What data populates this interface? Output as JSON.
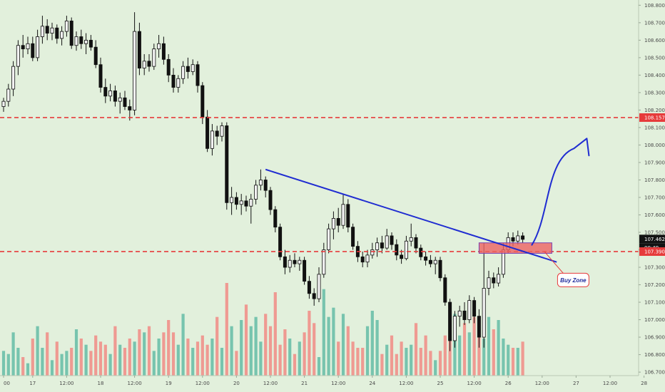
{
  "chart_data": {
    "type": "candlestick",
    "title": "",
    "price_axis": {
      "ticks": [
        "108.800",
        "108.700",
        "108.600",
        "108.500",
        "108.400",
        "108.300",
        "108.200",
        "108.100",
        "108.000",
        "107.900",
        "107.800",
        "107.700",
        "107.600",
        "107.500",
        "107.400",
        "107.300",
        "107.200",
        "107.100",
        "107.000",
        "106.900",
        "106.800",
        "106.700"
      ],
      "ylim": [
        106.68,
        108.83
      ]
    },
    "time_axis": {
      "ticks": [
        {
          "label": "00",
          "slot": 0
        },
        {
          "label": "17",
          "slot": 6
        },
        {
          "label": "12:00",
          "slot": 13
        },
        {
          "label": "18",
          "slot": 20
        },
        {
          "label": "12:00",
          "slot": 27
        },
        {
          "label": "19",
          "slot": 34
        },
        {
          "label": "12:00",
          "slot": 41
        },
        {
          "label": "20",
          "slot": 48
        },
        {
          "label": "12:00",
          "slot": 55
        },
        {
          "label": "21",
          "slot": 62
        },
        {
          "label": "12:00",
          "slot": 69
        },
        {
          "label": "24",
          "slot": 76
        },
        {
          "label": "12:00",
          "slot": 83
        },
        {
          "label": "25",
          "slot": 90
        },
        {
          "label": "12:00",
          "slot": 97
        },
        {
          "label": "26",
          "slot": 104
        },
        {
          "label": "12:00",
          "slot": 111
        },
        {
          "label": "27",
          "slot": 118
        },
        {
          "label": "12:00",
          "slot": 125
        },
        {
          "label": "28",
          "slot": 132
        }
      ]
    },
    "series": [
      {
        "type": "candle",
        "up_color": "#f2f2f2",
        "down_color": "#111111",
        "points": [
          {
            "o": 108.22,
            "h": 108.27,
            "l": 108.19,
            "c": 108.25
          },
          {
            "o": 108.25,
            "h": 108.35,
            "l": 108.22,
            "c": 108.32
          },
          {
            "o": 108.32,
            "h": 108.48,
            "l": 108.28,
            "c": 108.45
          },
          {
            "o": 108.45,
            "h": 108.6,
            "l": 108.4,
            "c": 108.57
          },
          {
            "o": 108.57,
            "h": 108.63,
            "l": 108.5,
            "c": 108.55
          },
          {
            "o": 108.55,
            "h": 108.62,
            "l": 108.52,
            "c": 108.58
          },
          {
            "o": 108.58,
            "h": 108.62,
            "l": 108.48,
            "c": 108.5
          },
          {
            "o": 108.5,
            "h": 108.66,
            "l": 108.48,
            "c": 108.62
          },
          {
            "o": 108.62,
            "h": 108.74,
            "l": 108.58,
            "c": 108.68
          },
          {
            "o": 108.68,
            "h": 108.72,
            "l": 108.6,
            "c": 108.64
          },
          {
            "o": 108.64,
            "h": 108.7,
            "l": 108.6,
            "c": 108.67
          },
          {
            "o": 108.67,
            "h": 108.69,
            "l": 108.58,
            "c": 108.61
          },
          {
            "o": 108.61,
            "h": 108.68,
            "l": 108.57,
            "c": 108.65
          },
          {
            "o": 108.65,
            "h": 108.74,
            "l": 108.62,
            "c": 108.71
          },
          {
            "o": 108.71,
            "h": 108.73,
            "l": 108.55,
            "c": 108.57
          },
          {
            "o": 108.57,
            "h": 108.65,
            "l": 108.54,
            "c": 108.62
          },
          {
            "o": 108.62,
            "h": 108.66,
            "l": 108.55,
            "c": 108.58
          },
          {
            "o": 108.58,
            "h": 108.64,
            "l": 108.52,
            "c": 108.6
          },
          {
            "o": 108.6,
            "h": 108.63,
            "l": 108.54,
            "c": 108.56
          },
          {
            "o": 108.56,
            "h": 108.6,
            "l": 108.44,
            "c": 108.46
          },
          {
            "o": 108.46,
            "h": 108.5,
            "l": 108.3,
            "c": 108.33
          },
          {
            "o": 108.33,
            "h": 108.38,
            "l": 108.24,
            "c": 108.28
          },
          {
            "o": 108.28,
            "h": 108.35,
            "l": 108.25,
            "c": 108.31
          },
          {
            "o": 108.31,
            "h": 108.34,
            "l": 108.22,
            "c": 108.25
          },
          {
            "o": 108.25,
            "h": 108.3,
            "l": 108.18,
            "c": 108.27
          },
          {
            "o": 108.27,
            "h": 108.31,
            "l": 108.2,
            "c": 108.22
          },
          {
            "o": 108.22,
            "h": 108.26,
            "l": 108.14,
            "c": 108.2
          },
          {
            "o": 108.2,
            "h": 108.76,
            "l": 108.17,
            "c": 108.65
          },
          {
            "o": 108.65,
            "h": 108.7,
            "l": 108.4,
            "c": 108.44
          },
          {
            "o": 108.44,
            "h": 108.52,
            "l": 108.4,
            "c": 108.48
          },
          {
            "o": 108.48,
            "h": 108.52,
            "l": 108.42,
            "c": 108.45
          },
          {
            "o": 108.45,
            "h": 108.58,
            "l": 108.43,
            "c": 108.55
          },
          {
            "o": 108.55,
            "h": 108.63,
            "l": 108.5,
            "c": 108.58
          },
          {
            "o": 108.58,
            "h": 108.62,
            "l": 108.46,
            "c": 108.49
          },
          {
            "o": 108.49,
            "h": 108.52,
            "l": 108.36,
            "c": 108.4
          },
          {
            "o": 108.4,
            "h": 108.44,
            "l": 108.3,
            "c": 108.33
          },
          {
            "o": 108.33,
            "h": 108.4,
            "l": 108.3,
            "c": 108.38
          },
          {
            "o": 108.38,
            "h": 108.48,
            "l": 108.35,
            "c": 108.45
          },
          {
            "o": 108.45,
            "h": 108.5,
            "l": 108.38,
            "c": 108.42
          },
          {
            "o": 108.42,
            "h": 108.49,
            "l": 108.4,
            "c": 108.46
          },
          {
            "o": 108.46,
            "h": 108.48,
            "l": 108.3,
            "c": 108.34
          },
          {
            "o": 108.34,
            "h": 108.36,
            "l": 108.12,
            "c": 108.16
          },
          {
            "o": 108.16,
            "h": 108.2,
            "l": 107.96,
            "c": 107.98
          },
          {
            "o": 107.98,
            "h": 108.12,
            "l": 107.94,
            "c": 108.08
          },
          {
            "o": 108.08,
            "h": 108.11,
            "l": 108.0,
            "c": 108.05
          },
          {
            "o": 108.05,
            "h": 108.13,
            "l": 108.02,
            "c": 108.11
          },
          {
            "o": 108.11,
            "h": 108.13,
            "l": 107.63,
            "c": 107.67
          },
          {
            "o": 107.67,
            "h": 107.76,
            "l": 107.6,
            "c": 107.7
          },
          {
            "o": 107.7,
            "h": 107.73,
            "l": 107.63,
            "c": 107.66
          },
          {
            "o": 107.66,
            "h": 107.72,
            "l": 107.6,
            "c": 107.68
          },
          {
            "o": 107.68,
            "h": 107.71,
            "l": 107.62,
            "c": 107.65
          },
          {
            "o": 107.65,
            "h": 107.72,
            "l": 107.55,
            "c": 107.69
          },
          {
            "o": 107.69,
            "h": 107.8,
            "l": 107.66,
            "c": 107.77
          },
          {
            "o": 107.77,
            "h": 107.86,
            "l": 107.74,
            "c": 107.8
          },
          {
            "o": 107.8,
            "h": 107.82,
            "l": 107.7,
            "c": 107.74
          },
          {
            "o": 107.74,
            "h": 107.76,
            "l": 107.6,
            "c": 107.63
          },
          {
            "o": 107.63,
            "h": 107.65,
            "l": 107.5,
            "c": 107.53
          },
          {
            "o": 107.53,
            "h": 107.55,
            "l": 107.34,
            "c": 107.36
          },
          {
            "o": 107.36,
            "h": 107.4,
            "l": 107.26,
            "c": 107.3
          },
          {
            "o": 107.3,
            "h": 107.37,
            "l": 107.27,
            "c": 107.34
          },
          {
            "o": 107.34,
            "h": 107.38,
            "l": 107.3,
            "c": 107.32
          },
          {
            "o": 107.32,
            "h": 107.36,
            "l": 107.28,
            "c": 107.34
          },
          {
            "o": 107.34,
            "h": 107.36,
            "l": 107.2,
            "c": 107.22
          },
          {
            "o": 107.22,
            "h": 107.25,
            "l": 107.12,
            "c": 107.15
          },
          {
            "o": 107.15,
            "h": 107.18,
            "l": 107.08,
            "c": 107.12
          },
          {
            "o": 107.12,
            "h": 107.3,
            "l": 107.1,
            "c": 107.26
          },
          {
            "o": 107.26,
            "h": 107.44,
            "l": 107.24,
            "c": 107.4
          },
          {
            "o": 107.4,
            "h": 107.55,
            "l": 107.38,
            "c": 107.52
          },
          {
            "o": 107.52,
            "h": 107.62,
            "l": 107.46,
            "c": 107.58
          },
          {
            "o": 107.58,
            "h": 107.64,
            "l": 107.5,
            "c": 107.54
          },
          {
            "o": 107.54,
            "h": 107.72,
            "l": 107.52,
            "c": 107.66
          },
          {
            "o": 107.66,
            "h": 107.69,
            "l": 107.5,
            "c": 107.53
          },
          {
            "o": 107.53,
            "h": 107.55,
            "l": 107.4,
            "c": 107.42
          },
          {
            "o": 107.42,
            "h": 107.45,
            "l": 107.33,
            "c": 107.36
          },
          {
            "o": 107.36,
            "h": 107.39,
            "l": 107.3,
            "c": 107.33
          },
          {
            "o": 107.33,
            "h": 107.4,
            "l": 107.3,
            "c": 107.37
          },
          {
            "o": 107.37,
            "h": 107.44,
            "l": 107.35,
            "c": 107.4
          },
          {
            "o": 107.4,
            "h": 107.47,
            "l": 107.36,
            "c": 107.44
          },
          {
            "o": 107.44,
            "h": 107.48,
            "l": 107.38,
            "c": 107.41
          },
          {
            "o": 107.41,
            "h": 107.52,
            "l": 107.4,
            "c": 107.48
          },
          {
            "o": 107.48,
            "h": 107.5,
            "l": 107.4,
            "c": 107.43
          },
          {
            "o": 107.43,
            "h": 107.46,
            "l": 107.34,
            "c": 107.37
          },
          {
            "o": 107.37,
            "h": 107.4,
            "l": 107.32,
            "c": 107.35
          },
          {
            "o": 107.35,
            "h": 107.48,
            "l": 107.34,
            "c": 107.45
          },
          {
            "o": 107.45,
            "h": 107.55,
            "l": 107.42,
            "c": 107.47
          },
          {
            "o": 107.47,
            "h": 107.49,
            "l": 107.38,
            "c": 107.41
          },
          {
            "o": 107.41,
            "h": 107.43,
            "l": 107.34,
            "c": 107.36
          },
          {
            "o": 107.36,
            "h": 107.39,
            "l": 107.31,
            "c": 107.34
          },
          {
            "o": 107.34,
            "h": 107.37,
            "l": 107.3,
            "c": 107.32
          },
          {
            "o": 107.32,
            "h": 107.36,
            "l": 107.26,
            "c": 107.34
          },
          {
            "o": 107.34,
            "h": 107.36,
            "l": 107.22,
            "c": 107.24
          },
          {
            "o": 107.24,
            "h": 107.26,
            "l": 107.08,
            "c": 107.1
          },
          {
            "o": 107.1,
            "h": 107.12,
            "l": 106.82,
            "c": 106.88
          },
          {
            "o": 106.88,
            "h": 107.05,
            "l": 106.84,
            "c": 107.02
          },
          {
            "o": 107.02,
            "h": 107.08,
            "l": 106.96,
            "c": 107.05
          },
          {
            "o": 107.05,
            "h": 107.1,
            "l": 106.97,
            "c": 107.0
          },
          {
            "o": 107.0,
            "h": 107.14,
            "l": 106.98,
            "c": 107.11
          },
          {
            "o": 107.11,
            "h": 107.13,
            "l": 106.98,
            "c": 107.02
          },
          {
            "o": 107.02,
            "h": 107.06,
            "l": 106.84,
            "c": 106.9
          },
          {
            "o": 106.9,
            "h": 107.44,
            "l": 106.84,
            "c": 107.18
          },
          {
            "o": 107.18,
            "h": 107.28,
            "l": 107.14,
            "c": 107.24
          },
          {
            "o": 107.24,
            "h": 107.27,
            "l": 107.18,
            "c": 107.21
          },
          {
            "o": 107.21,
            "h": 107.3,
            "l": 107.19,
            "c": 107.26
          },
          {
            "o": 107.26,
            "h": 107.44,
            "l": 107.24,
            "c": 107.4
          },
          {
            "o": 107.4,
            "h": 107.5,
            "l": 107.38,
            "c": 107.47
          },
          {
            "o": 107.47,
            "h": 107.5,
            "l": 107.42,
            "c": 107.45
          },
          {
            "o": 107.45,
            "h": 107.51,
            "l": 107.43,
            "c": 107.48
          },
          {
            "o": 107.48,
            "h": 107.5,
            "l": 107.44,
            "c": 107.46
          }
        ]
      },
      {
        "type": "volume",
        "up_color": "#77c4ae",
        "down_color": "#ef9a92",
        "values": [
          8,
          7,
          14,
          9,
          6,
          4,
          12,
          16,
          9,
          14,
          5,
          11,
          7,
          8,
          9,
          15,
          12,
          10,
          8,
          13,
          11,
          10,
          7,
          16,
          10,
          9,
          12,
          11,
          15,
          14,
          16,
          8,
          12,
          14,
          18,
          14,
          10,
          20,
          12,
          9,
          11,
          13,
          10,
          12,
          19,
          9,
          30,
          16,
          8,
          18,
          23,
          16,
          19,
          11,
          20,
          16,
          27,
          10,
          15,
          12,
          7,
          11,
          14,
          21,
          17,
          6,
          28,
          19,
          22,
          11,
          20,
          16,
          11,
          9,
          9,
          16,
          21,
          18,
          7,
          10,
          13,
          7,
          11,
          9,
          10,
          17,
          9,
          13,
          8,
          5,
          8,
          13,
          23,
          20,
          13,
          17,
          14,
          19,
          13,
          12,
          19,
          15,
          18,
          12,
          10,
          9,
          9,
          11
        ],
        "max": 30
      }
    ],
    "annotations": {
      "resistance_level": {
        "label": "108.157",
        "price": 108.157,
        "color": "#e63b3b"
      },
      "support_level": {
        "label": "107.390",
        "price": 107.39,
        "color": "#e63b3b"
      },
      "current_price": {
        "label": "107.462",
        "price": 107.462,
        "countdown": "00:49"
      },
      "trendline": {
        "color": "#1f2cd1",
        "from": {
          "slot": 54,
          "price": 107.86
        },
        "to": {
          "slot": 114,
          "price": 107.33
        }
      },
      "buy_zone": {
        "label": "Buy Zone",
        "from_slot": 98,
        "to_slot": 113,
        "price_low": 107.38,
        "price_high": 107.44,
        "color": "#ee6363"
      },
      "projection_color": "#1f2cd1"
    }
  }
}
